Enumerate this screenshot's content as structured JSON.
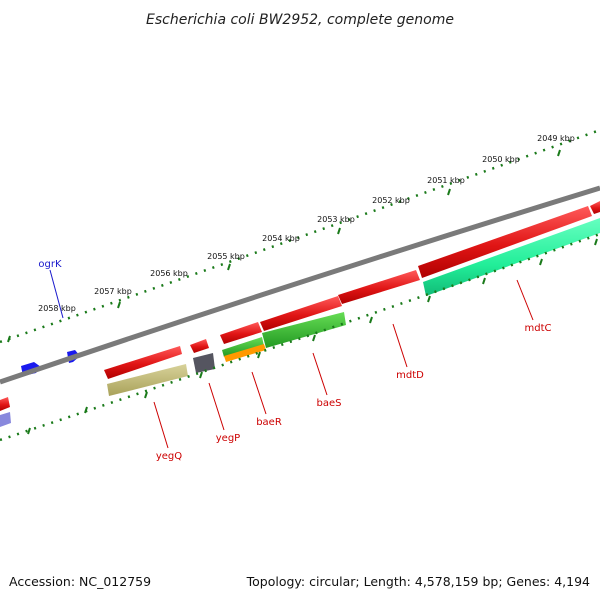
{
  "title": "Escherichia coli BW2952, complete genome",
  "footer": {
    "accession": "Accession: NC_012759",
    "summary": "Topology: circular; Length: 4,578,159 bp; Genes: 4,194"
  },
  "outer_ruler_labels": [
    "2049 kbp",
    "2050 kbp",
    "2051 kbp",
    "2052 kbp",
    "2053 kbp",
    "2054 kbp",
    "2055 kbp",
    "2056 kbp",
    "2057 kbp",
    "2058 kbp"
  ],
  "gene_labels": {
    "ogrK": "ogrK",
    "yegQ": "yegQ",
    "yegP": "yegP",
    "baeR": "baeR",
    "baeS": "baeS",
    "mdtD": "mdtD",
    "mdtC": "mdtC"
  },
  "colors": {
    "reverse_cds": "#ee1c1c",
    "blue_feature": "#1a1aee",
    "olive_feature": "#bdb76b",
    "green_feature": "#33cc33",
    "orange_feature": "#ff9900",
    "teal_feature": "#22ee99",
    "ruler": "#1a7a1a",
    "backbone": "#7a7a7a",
    "red_label": "#cc0000",
    "blue_label": "#1a1acc"
  }
}
